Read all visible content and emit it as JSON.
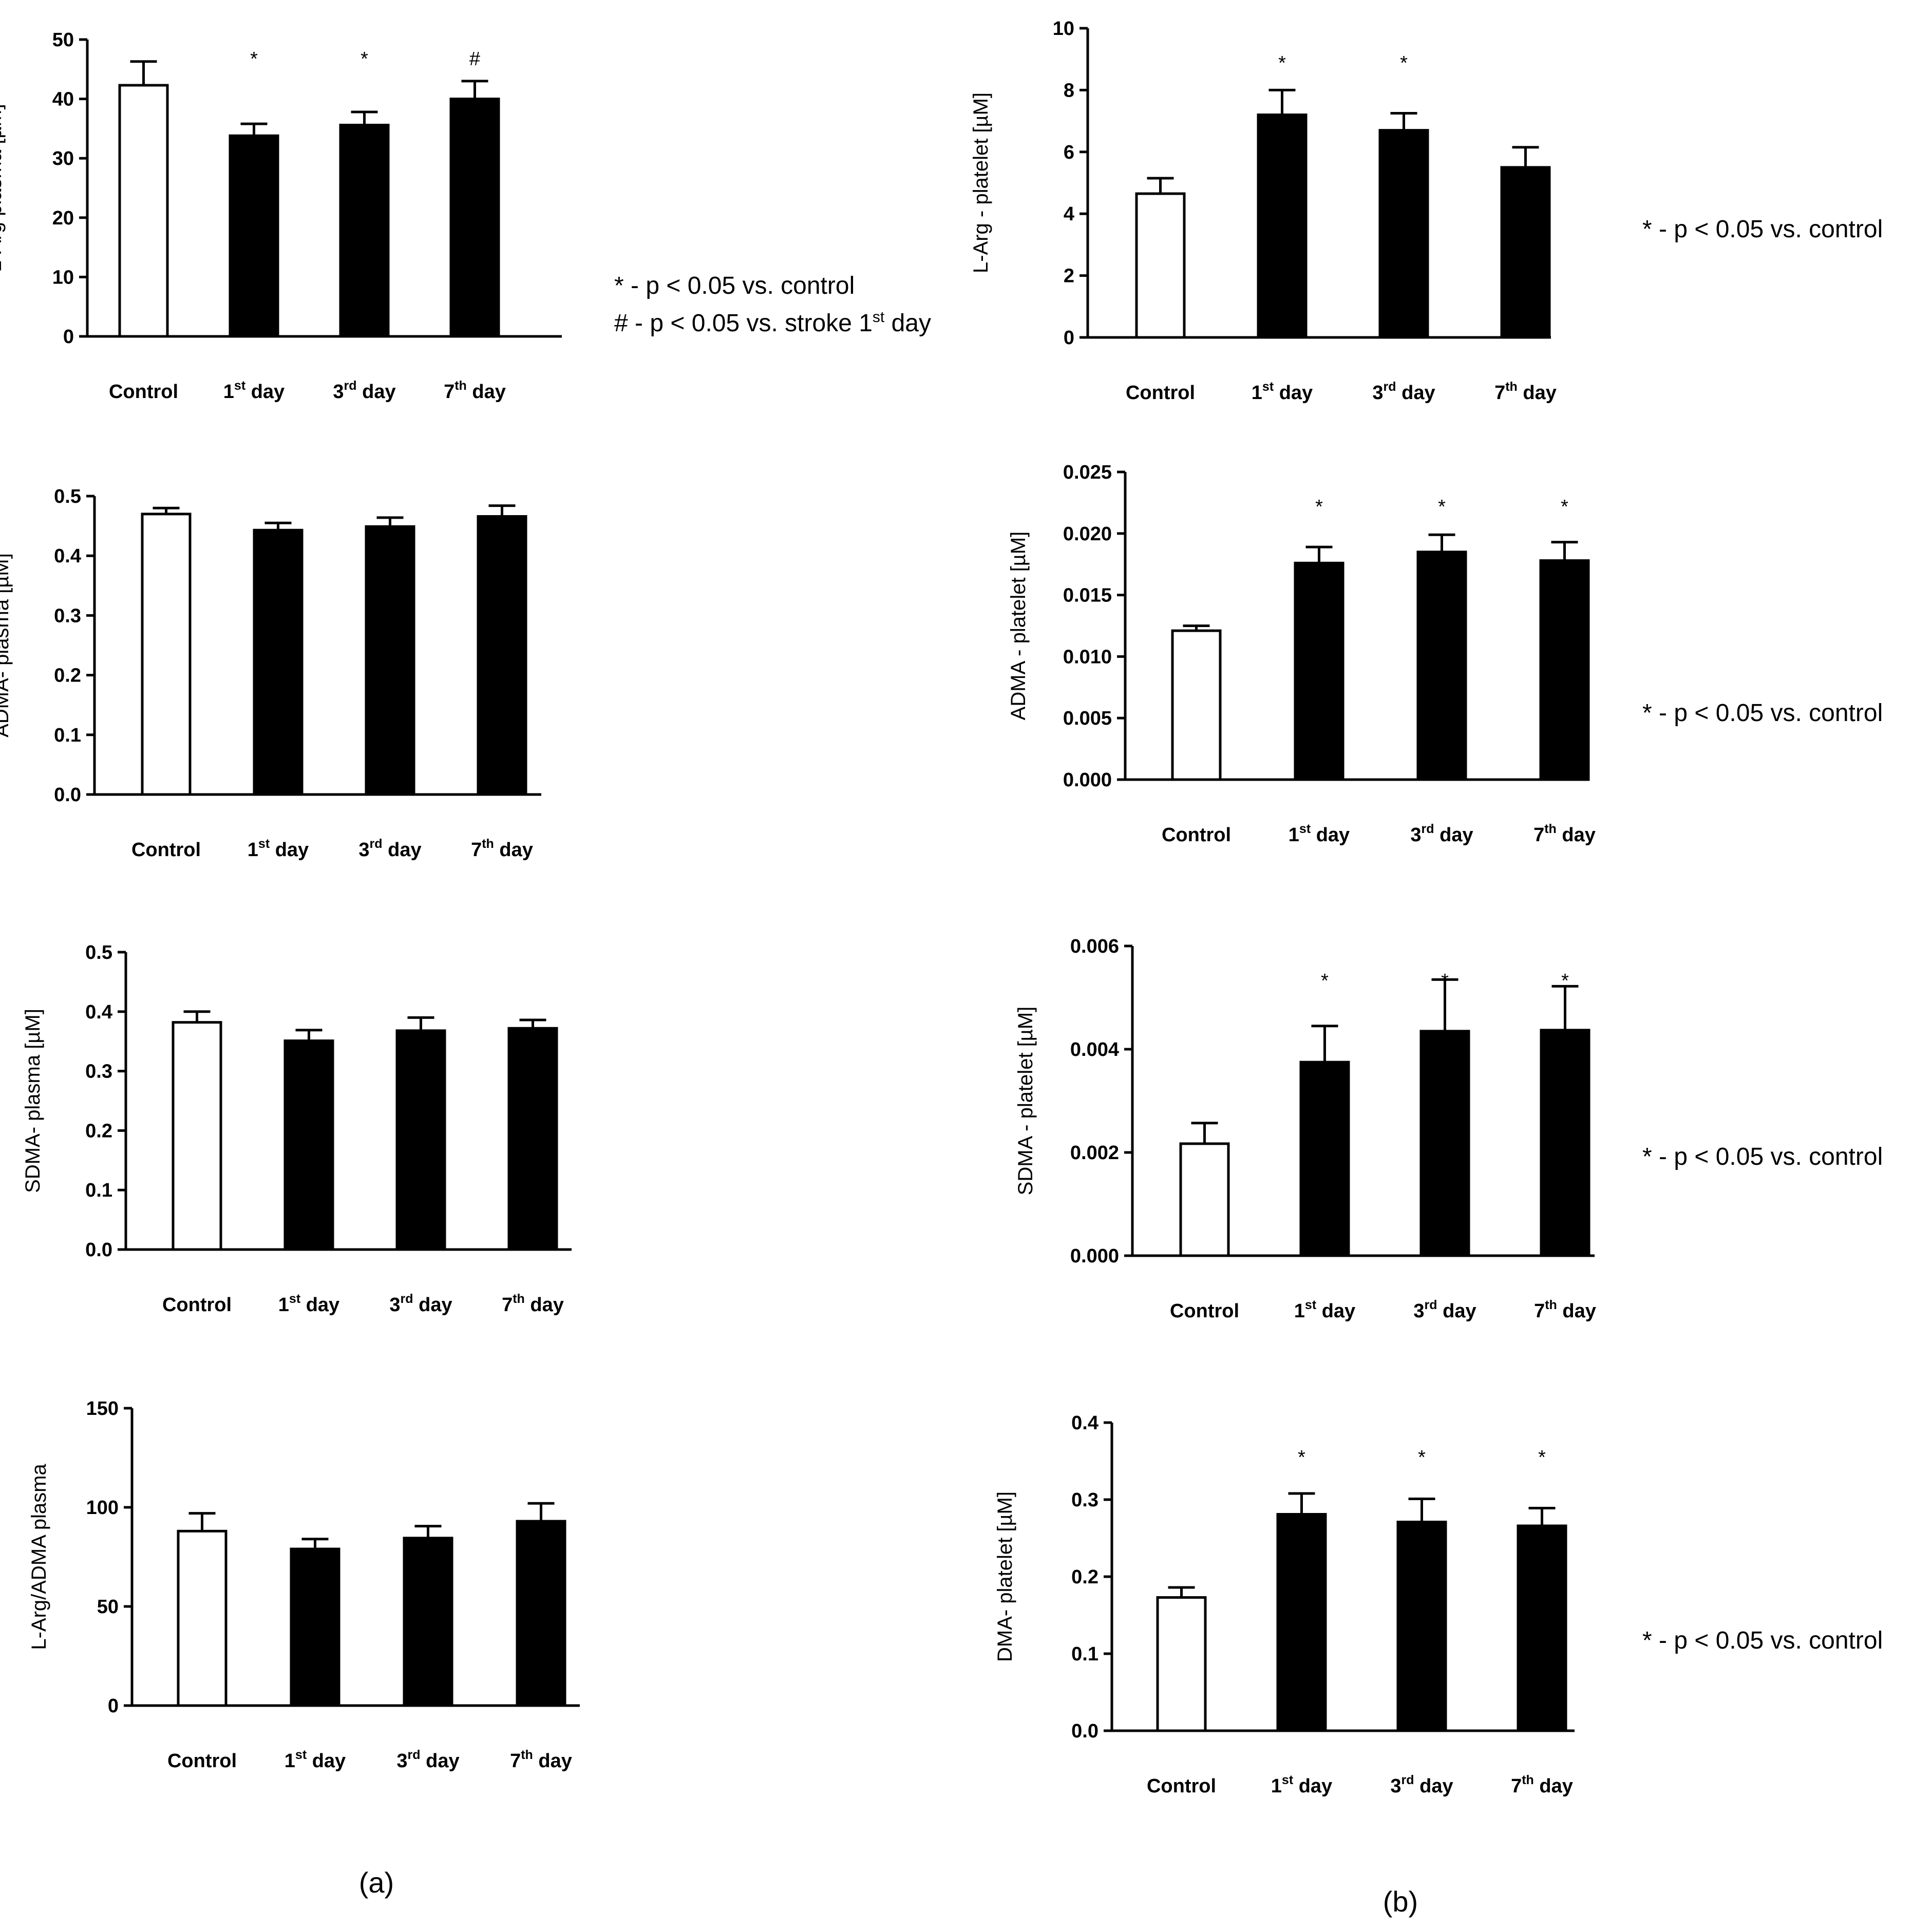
{
  "panel_labels": {
    "a": "(a)",
    "b": "(b)"
  },
  "colors": {
    "control_fill": "#ffffff",
    "stroke_fill": "#000000",
    "axis": "#000000"
  },
  "notes": {
    "a_star": "* - p < 0.05 vs. control",
    "a_hash_main": "# - p < 0.05 vs. stroke 1",
    "a_hash_sup": "st",
    "a_hash_tail": " day",
    "b1": "* - p < 0.05 vs. control",
    "b2": "* - p < 0.05 vs. control",
    "b3": "* - p < 0.05 vs. control",
    "b4": "* - p < 0.05 vs. control"
  },
  "chart_data": [
    {
      "id": "a1",
      "type": "bar",
      "ylabel": "L-Arg plasma [µM]",
      "categories": [
        {
          "main": "Control",
          "sup": "",
          "tail": ""
        },
        {
          "main": "1",
          "sup": "st",
          "tail": " day"
        },
        {
          "main": "3",
          "sup": "rd",
          "tail": " day"
        },
        {
          "main": "7",
          "sup": "th",
          "tail": " day"
        }
      ],
      "values": [
        42.3,
        33.8,
        35.6,
        40.0
      ],
      "errors": [
        4.0,
        2.0,
        2.2,
        3.0
      ],
      "significance": [
        "",
        "*",
        "*",
        "#"
      ],
      "ylim": [
        0,
        50
      ],
      "yticks": [
        0,
        10,
        20,
        30,
        40,
        50
      ],
      "ytick_labels": [
        "0",
        "10",
        "20",
        "30",
        "40",
        "50"
      ]
    },
    {
      "id": "a2",
      "type": "bar",
      "ylabel": "ADMA- plasma [µM]",
      "categories": [
        {
          "main": "Control",
          "sup": "",
          "tail": ""
        },
        {
          "main": "1",
          "sup": "st",
          "tail": " day"
        },
        {
          "main": "3",
          "sup": "rd",
          "tail": " day"
        },
        {
          "main": "7",
          "sup": "th",
          "tail": " day"
        }
      ],
      "values": [
        0.47,
        0.443,
        0.449,
        0.466
      ],
      "errors": [
        0.01,
        0.012,
        0.015,
        0.018
      ],
      "significance": [
        "",
        "",
        "",
        ""
      ],
      "ylim": [
        0,
        0.5
      ],
      "yticks": [
        0,
        0.1,
        0.2,
        0.3,
        0.4,
        0.5
      ],
      "ytick_labels": [
        "0.0",
        "0.1",
        "0.2",
        "0.3",
        "0.4",
        "0.5"
      ]
    },
    {
      "id": "a3",
      "type": "bar",
      "ylabel": "SDMA- plasma [µM]",
      "categories": [
        {
          "main": "Control",
          "sup": "",
          "tail": ""
        },
        {
          "main": "1",
          "sup": "st",
          "tail": " day"
        },
        {
          "main": "3",
          "sup": "rd",
          "tail": " day"
        },
        {
          "main": "7",
          "sup": "th",
          "tail": " day"
        }
      ],
      "values": [
        0.382,
        0.351,
        0.368,
        0.372
      ],
      "errors": [
        0.018,
        0.018,
        0.022,
        0.014
      ],
      "significance": [
        "",
        "",
        "",
        ""
      ],
      "ylim": [
        0,
        0.5
      ],
      "yticks": [
        0,
        0.1,
        0.2,
        0.3,
        0.4,
        0.5
      ],
      "ytick_labels": [
        "0.0",
        "0.1",
        "0.2",
        "0.3",
        "0.4",
        "0.5"
      ]
    },
    {
      "id": "a4",
      "type": "bar",
      "ylabel": "L-Arg/ADMA plasma",
      "categories": [
        {
          "main": "Control",
          "sup": "",
          "tail": ""
        },
        {
          "main": "1",
          "sup": "st",
          "tail": " day"
        },
        {
          "main": "3",
          "sup": "rd",
          "tail": " day"
        },
        {
          "main": "7",
          "sup": "th",
          "tail": " day"
        }
      ],
      "values": [
        88,
        79,
        84.5,
        93
      ],
      "errors": [
        9,
        5,
        6,
        9
      ],
      "significance": [
        "",
        "",
        "",
        ""
      ],
      "ylim": [
        0,
        150
      ],
      "yticks": [
        0,
        50,
        100,
        150
      ],
      "ytick_labels": [
        "0",
        "50",
        "100",
        "150"
      ]
    },
    {
      "id": "b1",
      "type": "bar",
      "ylabel": "L-Arg - platelet [µM]",
      "categories": [
        {
          "main": "Control",
          "sup": "",
          "tail": ""
        },
        {
          "main": "1",
          "sup": "st",
          "tail": " day"
        },
        {
          "main": "3",
          "sup": "rd",
          "tail": " day"
        },
        {
          "main": "7",
          "sup": "th",
          "tail": " day"
        }
      ],
      "values": [
        4.65,
        7.2,
        6.7,
        5.5
      ],
      "errors": [
        0.5,
        0.8,
        0.55,
        0.65
      ],
      "significance": [
        "",
        "*",
        "*",
        ""
      ],
      "ylim": [
        0,
        10
      ],
      "yticks": [
        0,
        2,
        4,
        6,
        8,
        10
      ],
      "ytick_labels": [
        "0",
        "2",
        "4",
        "6",
        "8",
        "10"
      ]
    },
    {
      "id": "b2",
      "type": "bar",
      "ylabel": "ADMA - platelet [µM]",
      "categories": [
        {
          "main": "Control",
          "sup": "",
          "tail": ""
        },
        {
          "main": "1",
          "sup": "st",
          "tail": " day"
        },
        {
          "main": "3",
          "sup": "rd",
          "tail": " day"
        },
        {
          "main": "7",
          "sup": "th",
          "tail": " day"
        }
      ],
      "values": [
        0.0121,
        0.0176,
        0.0185,
        0.0178
      ],
      "errors": [
        0.0004,
        0.0013,
        0.0014,
        0.0015
      ],
      "significance": [
        "",
        "*",
        "*",
        "*"
      ],
      "ylim": [
        0,
        0.025
      ],
      "yticks": [
        0,
        0.005,
        0.01,
        0.015,
        0.02,
        0.025
      ],
      "ytick_labels": [
        "0.000",
        "0.005",
        "0.010",
        "0.015",
        "0.020",
        "0.025"
      ]
    },
    {
      "id": "b3",
      "type": "bar",
      "ylabel": "SDMA - platelet [µM]",
      "categories": [
        {
          "main": "Control",
          "sup": "",
          "tail": ""
        },
        {
          "main": "1",
          "sup": "st",
          "tail": " day"
        },
        {
          "main": "3",
          "sup": "rd",
          "tail": " day"
        },
        {
          "main": "7",
          "sup": "th",
          "tail": " day"
        }
      ],
      "values": [
        0.00217,
        0.00375,
        0.00435,
        0.00437
      ],
      "errors": [
        0.0004,
        0.0007,
        0.001,
        0.00085
      ],
      "significance": [
        "",
        "*",
        "*",
        "*"
      ],
      "ylim": [
        0,
        0.006
      ],
      "yticks": [
        0,
        0.002,
        0.004,
        0.006
      ],
      "ytick_labels": [
        "0.000",
        "0.002",
        "0.004",
        "0.006"
      ]
    },
    {
      "id": "b4",
      "type": "bar",
      "ylabel": "DMA- platelet [µM]",
      "categories": [
        {
          "main": "Control",
          "sup": "",
          "tail": ""
        },
        {
          "main": "1",
          "sup": "st",
          "tail": " day"
        },
        {
          "main": "3",
          "sup": "rd",
          "tail": " day"
        },
        {
          "main": "7",
          "sup": "th",
          "tail": " day"
        }
      ],
      "values": [
        0.173,
        0.281,
        0.271,
        0.266
      ],
      "errors": [
        0.013,
        0.027,
        0.03,
        0.023
      ],
      "significance": [
        "",
        "*",
        "*",
        "*"
      ],
      "ylim": [
        0,
        0.4
      ],
      "yticks": [
        0,
        0.1,
        0.2,
        0.3,
        0.4
      ],
      "ytick_labels": [
        "0.0",
        "0.1",
        "0.2",
        "0.3",
        "0.4"
      ]
    }
  ]
}
